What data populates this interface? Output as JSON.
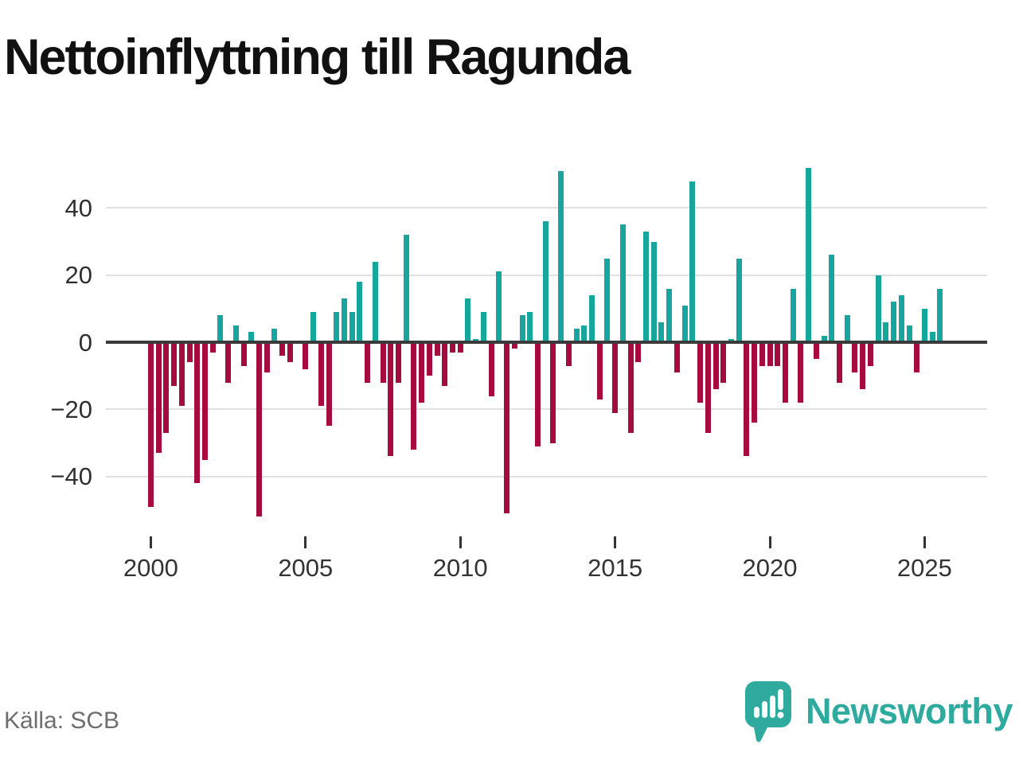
{
  "title": "Nettoinflyttning till Ragunda",
  "source_label": "Källa: SCB",
  "brand": {
    "name": "Newsworthy",
    "color": "#2faa9e"
  },
  "colors": {
    "positive_bar": "#17a69d",
    "negative_bar": "#a50b3f",
    "zero_axis": "#3a3a3a",
    "gridline": "#e1e1e1",
    "tick_label": "#333333",
    "source_text": "#6e6e6e"
  },
  "chart_data": {
    "type": "bar",
    "title": "Nettoinflyttning till Ragunda",
    "frequency": "quarterly",
    "start_period": "2000Q1",
    "end_period": "2025Q3",
    "values": [
      -49,
      -33,
      -27,
      -13,
      -19,
      -6,
      -42,
      -35,
      -3,
      8,
      -12,
      5,
      -7,
      3,
      -52,
      -9,
      4,
      -4,
      -6,
      0,
      -8,
      9,
      -19,
      -25,
      9,
      13,
      9,
      18,
      -12,
      24,
      -12,
      -34,
      -12,
      32,
      -32,
      -18,
      -10,
      -4,
      -13,
      -3,
      -3,
      13,
      1,
      9,
      -16,
      21,
      -51,
      -2,
      8,
      9,
      -31,
      36,
      -30,
      51,
      -7,
      4,
      5,
      14,
      -17,
      25,
      -21,
      35,
      -27,
      -6,
      33,
      30,
      6,
      16,
      -9,
      11,
      48,
      -18,
      -27,
      -14,
      -12,
      1,
      25,
      -34,
      -24,
      -7,
      -7,
      -7,
      -18,
      16,
      -18,
      52,
      -5,
      2,
      26,
      -12,
      8,
      -9,
      -14,
      -7,
      20,
      6,
      12,
      14,
      5,
      -9,
      10,
      3,
      16
    ],
    "yticks": [
      40,
      20,
      0,
      -20,
      -40
    ],
    "ytick_labels": [
      "40",
      "20",
      "0",
      "−20",
      "−40"
    ],
    "xtick_years": [
      2000,
      2005,
      2010,
      2015,
      2020,
      2025
    ],
    "ylim": [
      -57,
      57
    ],
    "grid": "horizontal",
    "legend": "none",
    "positive_color": "#17a69d",
    "negative_color": "#a50b3f"
  }
}
